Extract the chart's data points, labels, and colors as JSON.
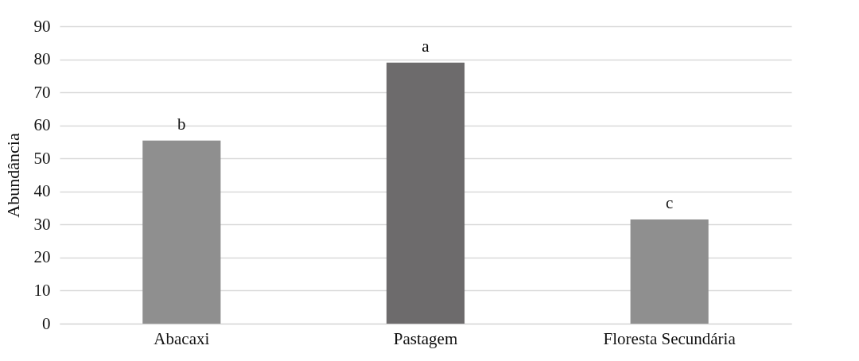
{
  "chart_data": {
    "type": "bar",
    "ylabel": "Abundância",
    "categories": [
      "Abacaxi",
      "Pastagem",
      "Floresta Secundária"
    ],
    "values": [
      55.4,
      79,
      31.5
    ],
    "colors": [
      "#8f8f8f",
      "#6d6b6c",
      "#8f8f8f"
    ],
    "ylim": [
      0,
      90
    ],
    "yticks": [
      0,
      10,
      20,
      30,
      40,
      50,
      60,
      70,
      80,
      90
    ],
    "grid": "y",
    "annotations": [
      {
        "text": "b",
        "x": "Abacaxi",
        "y": 55.4
      },
      {
        "text": "a",
        "x": "Pastagem",
        "y": 79
      },
      {
        "text": "c",
        "x": "Floresta Secundária",
        "y": 31.5
      }
    ]
  }
}
